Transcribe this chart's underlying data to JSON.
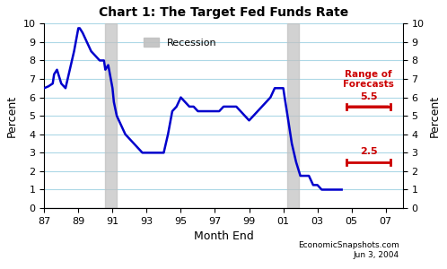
{
  "title": "Chart 1: The Target Fed Funds Rate",
  "xlabel": "Month End",
  "ylabel": "Percent",
  "ylim": [
    0,
    10
  ],
  "xlim": [
    1987,
    2008
  ],
  "xtick_labels": [
    "87",
    "89",
    "91",
    "93",
    "95",
    "97",
    "99",
    "01",
    "03",
    "05",
    "07"
  ],
  "xtick_values": [
    1987,
    1989,
    1991,
    1993,
    1995,
    1997,
    1999,
    2001,
    2003,
    2005,
    2007
  ],
  "ytick_values": [
    0,
    1,
    2,
    3,
    4,
    5,
    6,
    7,
    8,
    9,
    10
  ],
  "line_color": "#0000CC",
  "recession_color": "#C0C0C0",
  "recession_alpha": 0.7,
  "recession1_start": 1990.583,
  "recession1_end": 1991.25,
  "recession2_start": 2001.25,
  "recession2_end": 2001.92,
  "forecast_line_color": "#CC0000",
  "forecast_upper": 5.5,
  "forecast_lower": 2.5,
  "watermark1": "EconomicSnapshots.com",
  "watermark2": "Jun 3, 2004",
  "range_label": "Range of\nForecasts",
  "background_color": "#ffffff",
  "grid_color": "#ADD8E6",
  "data_x": [
    1987.0,
    1987.25,
    1987.5,
    1987.58,
    1987.75,
    1988.0,
    1988.25,
    1988.5,
    1988.75,
    1989.0,
    1989.08,
    1989.25,
    1989.5,
    1989.75,
    1990.0,
    1990.25,
    1990.5,
    1990.58,
    1990.75,
    1991.0,
    1991.08,
    1991.25,
    1991.5,
    1991.75,
    1992.0,
    1992.25,
    1992.5,
    1992.75,
    1993.0,
    1993.25,
    1993.5,
    1993.75,
    1994.0,
    1994.25,
    1994.5,
    1994.75,
    1995.0,
    1995.25,
    1995.5,
    1995.75,
    1996.0,
    1996.25,
    1996.5,
    1996.75,
    1997.0,
    1997.25,
    1997.5,
    1997.75,
    1998.0,
    1998.25,
    1998.5,
    1998.75,
    1999.0,
    1999.25,
    1999.5,
    1999.75,
    2000.0,
    2000.25,
    2000.5,
    2000.75,
    2001.0,
    2001.08,
    2001.25,
    2001.5,
    2001.75,
    2002.0,
    2002.25,
    2002.5,
    2002.75,
    2003.0,
    2003.25,
    2003.5,
    2003.75,
    2004.0,
    2004.25,
    2004.42
  ],
  "data_y": [
    6.5,
    6.6,
    6.75,
    7.25,
    7.5,
    6.75,
    6.5,
    7.5,
    8.5,
    9.75,
    9.75,
    9.5,
    9.0,
    8.5,
    8.25,
    8.0,
    8.0,
    7.5,
    7.75,
    6.5,
    5.75,
    5.0,
    4.5,
    4.0,
    3.75,
    3.5,
    3.25,
    3.0,
    3.0,
    3.0,
    3.0,
    3.0,
    3.0,
    4.0,
    5.25,
    5.5,
    6.0,
    5.75,
    5.5,
    5.5,
    5.25,
    5.25,
    5.25,
    5.25,
    5.25,
    5.25,
    5.5,
    5.5,
    5.5,
    5.5,
    5.25,
    5.0,
    4.75,
    5.0,
    5.25,
    5.5,
    5.75,
    6.0,
    6.5,
    6.5,
    6.5,
    6.0,
    5.0,
    3.5,
    2.5,
    1.75,
    1.75,
    1.75,
    1.25,
    1.25,
    1.0,
    1.0,
    1.0,
    1.0,
    1.0,
    1.0
  ]
}
